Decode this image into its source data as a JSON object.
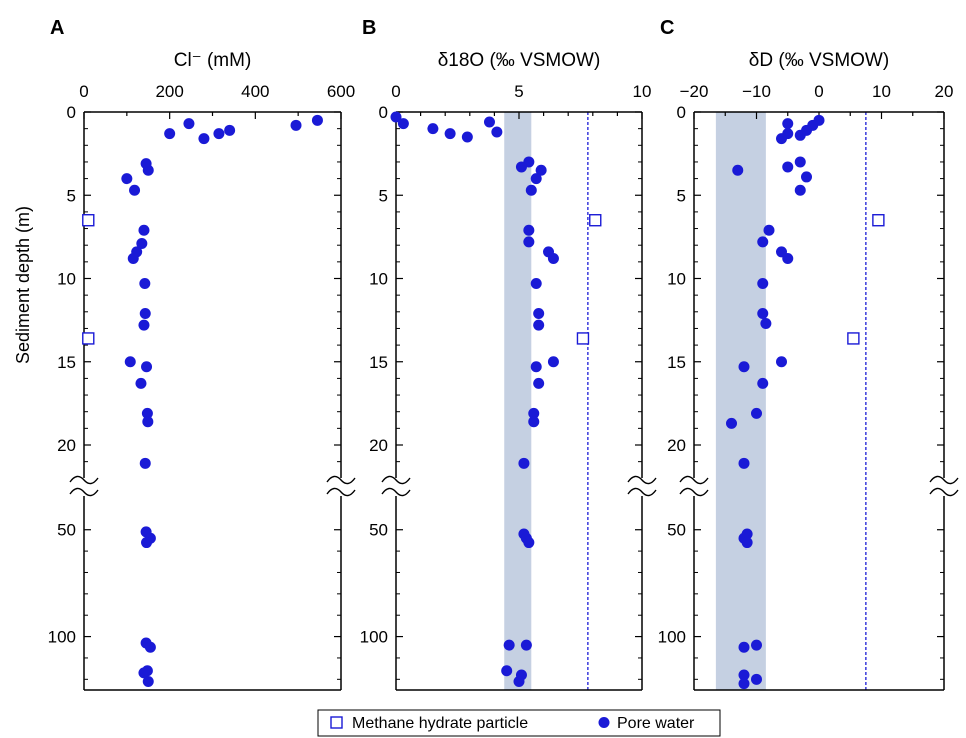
{
  "figure": {
    "ylabel": "Sediment depth (m)",
    "colors": {
      "marker": "#1a1ad6",
      "band": "#c5d0e2",
      "axis": "#000000",
      "refline": "#1a1ad6"
    },
    "legend": {
      "placement": "bottom-center",
      "items": [
        {
          "label": "Methane hydrate particle",
          "marker": "open-square"
        },
        {
          "label": "Pore water",
          "marker": "filled-circle"
        }
      ]
    }
  },
  "chart_data": [
    {
      "type": "scatter",
      "panel": "A",
      "xlabel": "Cl⁻ (mM)",
      "xlim": [
        0,
        600
      ],
      "xticks": [
        0,
        200,
        400,
        600
      ],
      "minor_x": 100,
      "series": [
        {
          "name": "Methane hydrate particle",
          "marker": "open-square",
          "points": [
            [
              10,
              6.5
            ],
            [
              10,
              13.6
            ]
          ]
        },
        {
          "name": "Pore water",
          "marker": "filled-circle",
          "points": [
            [
              545,
              0.5
            ],
            [
              495,
              0.8
            ],
            [
              245,
              0.7
            ],
            [
              340,
              1.1
            ],
            [
              315,
              1.3
            ],
            [
              200,
              1.3
            ],
            [
              280,
              1.6
            ],
            [
              145,
              3.1
            ],
            [
              150,
              3.5
            ],
            [
              100,
              4.0
            ],
            [
              118,
              4.7
            ],
            [
              140,
              7.1
            ],
            [
              135,
              7.9
            ],
            [
              123,
              8.4
            ],
            [
              115,
              8.8
            ],
            [
              142,
              10.3
            ],
            [
              143,
              12.1
            ],
            [
              140,
              12.8
            ],
            [
              108,
              15.0
            ],
            [
              146,
              15.3
            ],
            [
              133,
              16.3
            ],
            [
              148,
              18.1
            ],
            [
              149,
              18.6
            ],
            [
              143,
              21.1
            ],
            [
              145,
              51
            ],
            [
              155,
              54
            ],
            [
              146,
              56
            ],
            [
              145,
              103
            ],
            [
              155,
              105
            ],
            [
              140,
              117
            ],
            [
              148,
              116
            ],
            [
              150,
              121
            ]
          ]
        }
      ]
    },
    {
      "type": "scatter",
      "panel": "B",
      "xlabel": "δ18O (‰ VSMOW)",
      "xlim": [
        0,
        10
      ],
      "xticks": [
        0,
        5,
        10
      ],
      "minor_x": 1,
      "band": [
        4.4,
        5.5
      ],
      "refline_x": 7.8,
      "series": [
        {
          "name": "Methane hydrate particle",
          "marker": "open-square",
          "points": [
            [
              8.1,
              6.5
            ],
            [
              7.6,
              13.6
            ]
          ]
        },
        {
          "name": "Pore water",
          "marker": "filled-circle",
          "points": [
            [
              0,
              0.3
            ],
            [
              0.3,
              0.7
            ],
            [
              1.5,
              1.0
            ],
            [
              2.2,
              1.3
            ],
            [
              2.9,
              1.5
            ],
            [
              3.8,
              0.6
            ],
            [
              4.1,
              1.2
            ],
            [
              5.4,
              3.0
            ],
            [
              5.9,
              3.5
            ],
            [
              5.1,
              3.3
            ],
            [
              5.5,
              4.7
            ],
            [
              5.7,
              4.0
            ],
            [
              5.4,
              7.1
            ],
            [
              5.4,
              7.8
            ],
            [
              6.2,
              8.4
            ],
            [
              6.4,
              8.8
            ],
            [
              5.7,
              10.3
            ],
            [
              5.8,
              12.1
            ],
            [
              5.8,
              12.8
            ],
            [
              6.4,
              15.0
            ],
            [
              5.7,
              15.3
            ],
            [
              5.8,
              16.3
            ],
            [
              5.6,
              18.1
            ],
            [
              5.6,
              18.6
            ],
            [
              5.2,
              21.1
            ],
            [
              5.2,
              52
            ],
            [
              5.3,
              54
            ],
            [
              5.4,
              56
            ],
            [
              4.6,
              104
            ],
            [
              5.3,
              104
            ],
            [
              4.5,
              116
            ],
            [
              5.1,
              118
            ],
            [
              5.0,
              121
            ]
          ]
        }
      ]
    },
    {
      "type": "scatter",
      "panel": "C",
      "xlabel": "δD (‰ VSMOW)",
      "xlim": [
        -20,
        20
      ],
      "xticks": [
        -20,
        -10,
        0,
        10,
        20
      ],
      "minor_x": 5,
      "band": [
        -16.5,
        -8.5
      ],
      "refline_x": 7.5,
      "series": [
        {
          "name": "Methane hydrate particle",
          "marker": "open-square",
          "points": [
            [
              9.5,
              6.5
            ],
            [
              5.5,
              13.6
            ]
          ]
        },
        {
          "name": "Pore water",
          "marker": "filled-circle",
          "points": [
            [
              0,
              0.5
            ],
            [
              -1,
              0.8
            ],
            [
              -2,
              1.1
            ],
            [
              -3,
              1.4
            ],
            [
              -5,
              0.7
            ],
            [
              -5,
              1.3
            ],
            [
              -6,
              1.6
            ],
            [
              -3,
              3.0
            ],
            [
              -5,
              3.3
            ],
            [
              -2,
              3.9
            ],
            [
              -3,
              4.7
            ],
            [
              -13,
              3.5
            ],
            [
              -8,
              7.1
            ],
            [
              -9,
              7.8
            ],
            [
              -6,
              8.4
            ],
            [
              -5,
              8.8
            ],
            [
              -9,
              10.3
            ],
            [
              -9,
              12.1
            ],
            [
              -8.5,
              12.7
            ],
            [
              -12,
              15.3
            ],
            [
              -6,
              15.0
            ],
            [
              -9,
              16.3
            ],
            [
              -10,
              18.1
            ],
            [
              -14,
              18.7
            ],
            [
              -12,
              21.1
            ],
            [
              -11.5,
              52
            ],
            [
              -12,
              54
            ],
            [
              -11.5,
              56
            ],
            [
              -10,
              104
            ],
            [
              -12,
              105
            ],
            [
              -12,
              118
            ],
            [
              -10,
              120
            ],
            [
              -12,
              122
            ]
          ]
        }
      ]
    }
  ]
}
